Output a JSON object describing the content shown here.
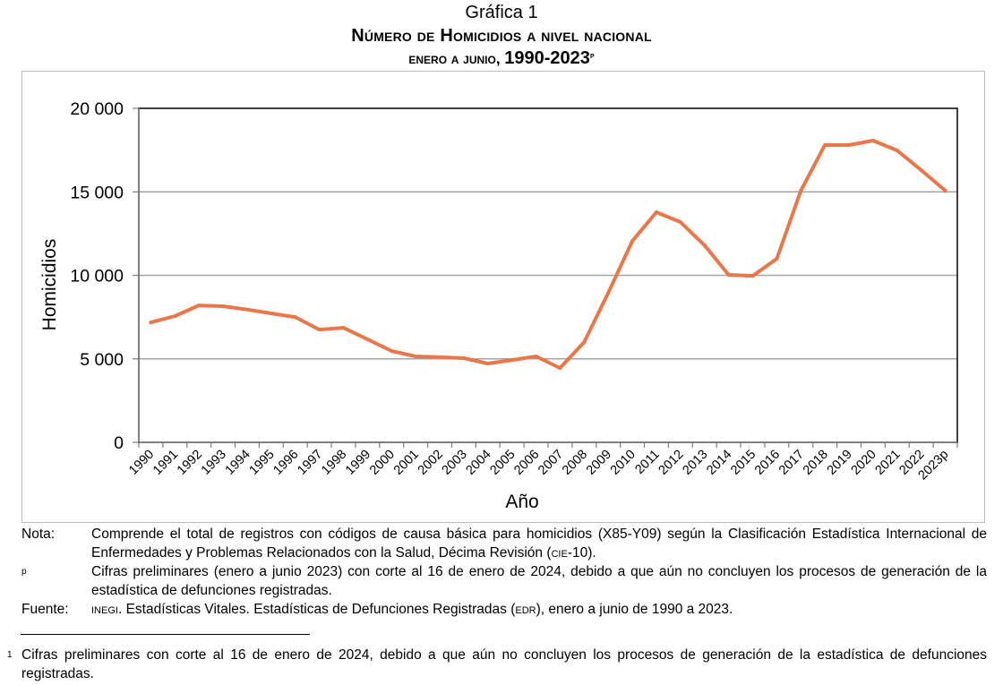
{
  "caption": {
    "figure_label": "Gráfica 1",
    "title": "Número de Homicidios a nivel nacional",
    "subtitle_smallcaps": "enero a junio, ",
    "subtitle_years": "1990-2023",
    "subtitle_sup": "p"
  },
  "chart_data": {
    "type": "line",
    "title": "Número de Homicidios a nivel nacional",
    "xlabel": "Año",
    "ylabel": "Homicidios",
    "ylim": [
      0,
      20000
    ],
    "yticks": [
      0,
      5000,
      10000,
      15000,
      20000
    ],
    "ytick_labels": [
      "0",
      "5 000",
      "10 000",
      "15 000",
      "20 000"
    ],
    "grid": true,
    "legend": "none",
    "line_color": "#e8774a",
    "categories": [
      "1990",
      "1991",
      "1992",
      "1993",
      "1994",
      "1995",
      "1996",
      "1997",
      "1998",
      "1999",
      "2000",
      "2001",
      "2002",
      "2003",
      "2004",
      "2005",
      "2006",
      "2007",
      "2008",
      "2009",
      "2010",
      "2011",
      "2012",
      "2013",
      "2014",
      "2015",
      "2016",
      "2017",
      "2018",
      "2019",
      "2020",
      "2021",
      "2022",
      "2023p"
    ],
    "series": [
      {
        "name": "Homicidios",
        "values": [
          7180,
          7560,
          8200,
          8150,
          7950,
          7720,
          7500,
          6750,
          6860,
          6170,
          5470,
          5150,
          5100,
          5040,
          4720,
          4930,
          5150,
          4450,
          6000,
          8950,
          12060,
          13780,
          13190,
          11800,
          10030,
          9970,
          10990,
          15070,
          17800,
          17800,
          18070,
          17480,
          16300,
          15070
        ]
      }
    ]
  },
  "notes": {
    "nota_label": "Nota:",
    "nota_text_1": "Comprende el total de registros con códigos de causa básica para homicidios (X85-Y09) según la Clasificación Estadística Internacional de Enfermedades y Problemas Relacionados con la Salud, Décima Revisión (",
    "nota_cie": "cie",
    "nota_text_2": "-10).",
    "p_label": "p",
    "p_text": "Cifras preliminares (enero a junio 2023) con corte al 16 de enero de 2024, debido a que aún no concluyen los procesos de generación de la estadística de defunciones registradas.",
    "fuente_label": "Fuente:",
    "fuente_inegi": "inegi",
    "fuente_text_1": ". Estadísticas Vitales. Estadísticas de Defunciones Registradas (",
    "fuente_edr": "edr",
    "fuente_text_2": "), enero a junio de 1990 a 2023."
  },
  "footnote": {
    "mark": "1",
    "text": "Cifras preliminares con corte al 16 de enero de 2024, debido a que aún no concluyen los procesos de generación de la estadística de defunciones registradas."
  }
}
